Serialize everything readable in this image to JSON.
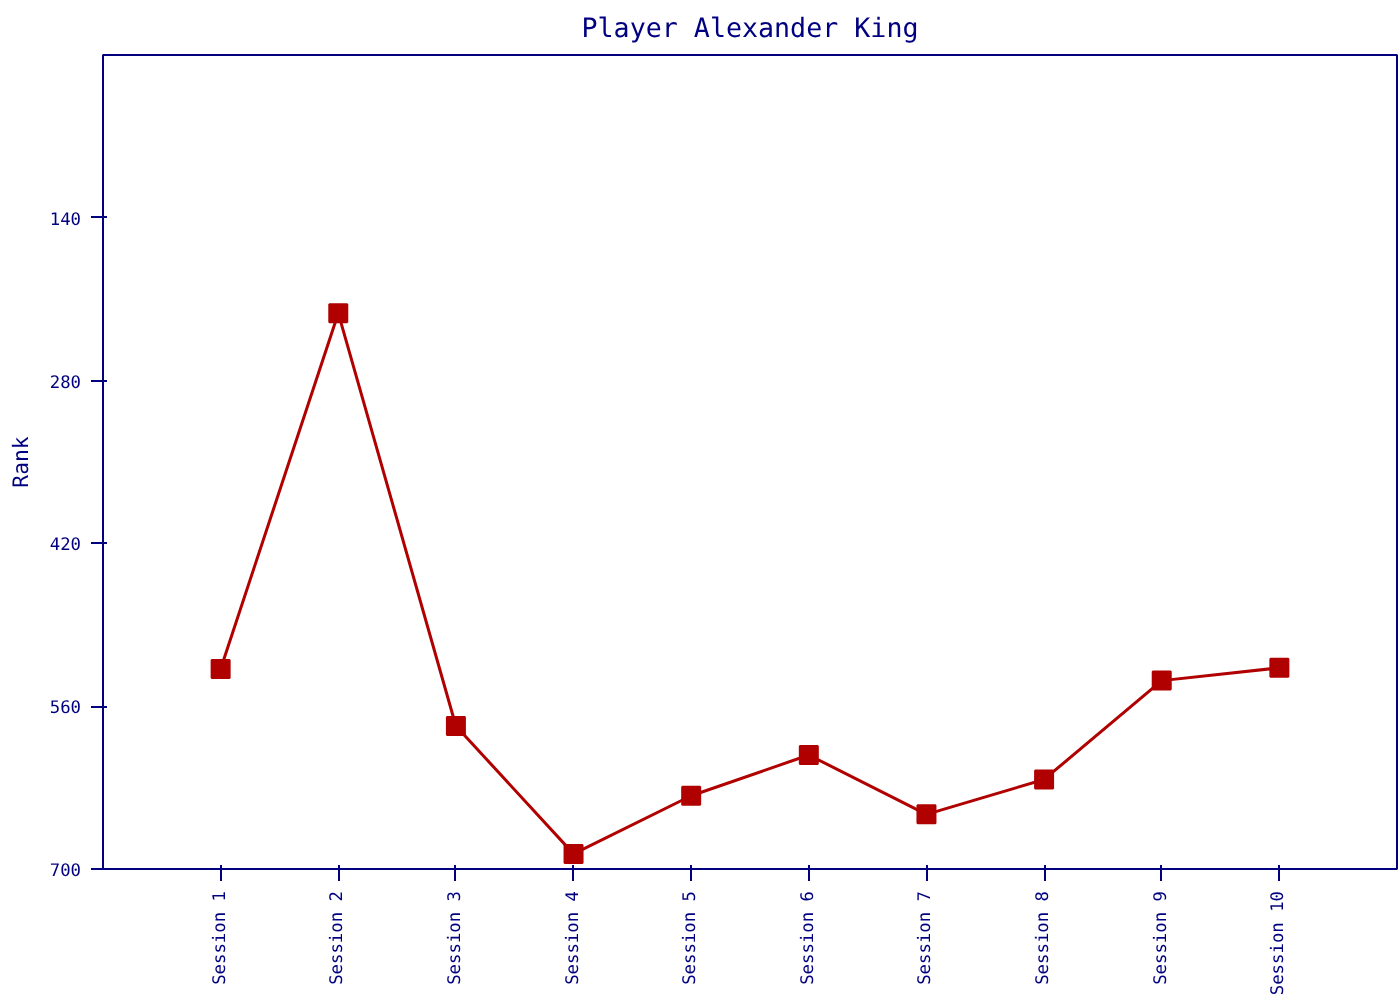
{
  "chart_data": {
    "type": "line",
    "title": "Player Alexander King",
    "ylabel": "Rank",
    "categories": [
      "Session 1",
      "Session 2",
      "Session 3",
      "Session 4",
      "Session 5",
      "Session 6",
      "Session 7",
      "Session 8",
      "Session 9",
      "Session 10"
    ],
    "series": [
      {
        "color": "#b00000",
        "values": [
          528,
          222,
          577,
          687,
          637,
          602,
          653,
          623,
          538,
          527
        ]
      }
    ],
    "ylim": [
      700,
      0
    ],
    "yticks": [
      140,
      280,
      420,
      560,
      700
    ],
    "grid": false,
    "marker": "square",
    "line_style": "solid"
  }
}
